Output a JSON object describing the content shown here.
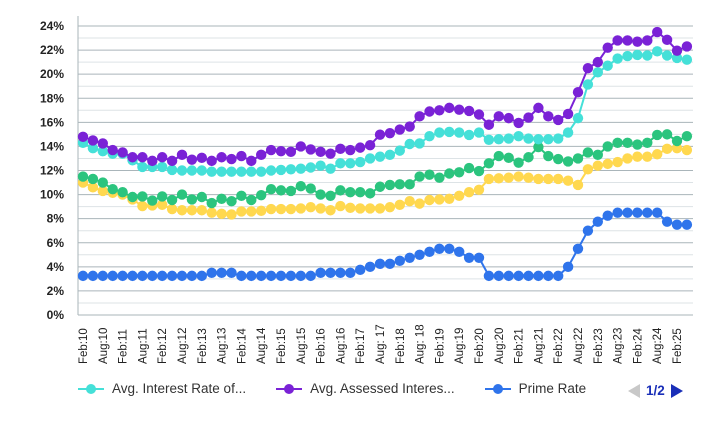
{
  "chart_data": {
    "type": "line",
    "title": "",
    "xlabel": "",
    "ylabel": "",
    "ylim": [
      0,
      24
    ],
    "yticks": [
      "0%",
      "2%",
      "4%",
      "6%",
      "8%",
      "10%",
      "12%",
      "14%",
      "16%",
      "18%",
      "20%",
      "22%",
      "24%"
    ],
    "grid": true,
    "legend_position": "bottom",
    "x_tick_labels": [
      "Feb:10",
      "Aug:10",
      "Feb:11",
      "Aug:11",
      "Feb:12",
      "Aug:12",
      "Feb:13",
      "Aug:13",
      "Feb:14",
      "Aug:14",
      "Feb:15",
      "Aug:15",
      "Feb:16",
      "Aug:16",
      "Feb:17",
      "Aug: 17",
      "Feb:18",
      "Aug: 18",
      "Feb:19",
      "Aug:19",
      "Feb:20",
      "Aug:20",
      "Feb:21",
      "Aug:21",
      "Feb:22",
      "Aug:22",
      "Feb:23",
      "Aug:23",
      "Feb:24",
      "Aug:24",
      "Feb:25"
    ],
    "series": [
      {
        "name": "Avg. Interest Rate of...",
        "color": "#45E0D8",
        "legend": true,
        "values": [
          14.3,
          13.85,
          13.6,
          13.4,
          13.4,
          12.85,
          12.3,
          12.3,
          12.3,
          12.05,
          12.0,
          12.0,
          12.0,
          11.9,
          11.9,
          11.9,
          11.9,
          11.9,
          11.9,
          12.0,
          12.05,
          12.1,
          12.15,
          12.25,
          12.4,
          12.15,
          12.6,
          12.6,
          12.7,
          13.0,
          13.15,
          13.3,
          13.65,
          14.2,
          14.25,
          14.85,
          15.15,
          15.2,
          15.15,
          14.95,
          15.15,
          14.55,
          14.6,
          14.65,
          14.85,
          14.65,
          14.6,
          14.6,
          14.65,
          15.15,
          16.35,
          19.15,
          20.15,
          20.7,
          21.3,
          21.5,
          21.6,
          21.55,
          21.9,
          21.55,
          21.35,
          21.2
        ]
      },
      {
        "name": "Avg. Assessed Interes...",
        "color": "#7A22D6",
        "legend": true,
        "values": [
          14.8,
          14.5,
          14.25,
          13.7,
          13.5,
          13.1,
          13.1,
          12.8,
          13.1,
          12.8,
          13.3,
          12.9,
          13.05,
          12.8,
          13.1,
          12.95,
          13.2,
          12.8,
          13.3,
          13.7,
          13.6,
          13.55,
          14.0,
          13.75,
          13.55,
          13.4,
          13.8,
          13.7,
          13.9,
          14.1,
          14.97,
          15.1,
          15.4,
          15.65,
          16.5,
          16.9,
          17.0,
          17.2,
          17.05,
          16.95,
          16.65,
          15.8,
          16.5,
          16.35,
          15.95,
          16.4,
          17.2,
          16.5,
          16.2,
          16.7,
          18.5,
          20.5,
          21.0,
          22.2,
          22.8,
          22.8,
          22.7,
          22.8,
          23.5,
          22.85,
          21.95,
          22.3
        ]
      },
      {
        "name": "Prime Rate",
        "color": "#2F74EB",
        "legend": true,
        "values": [
          3.25,
          3.25,
          3.25,
          3.25,
          3.25,
          3.25,
          3.25,
          3.25,
          3.25,
          3.25,
          3.25,
          3.25,
          3.25,
          3.5,
          3.5,
          3.5,
          3.25,
          3.25,
          3.25,
          3.25,
          3.25,
          3.25,
          3.25,
          3.25,
          3.5,
          3.5,
          3.5,
          3.5,
          3.75,
          4.0,
          4.25,
          4.25,
          4.5,
          4.75,
          5.0,
          5.25,
          5.5,
          5.5,
          5.25,
          4.75,
          4.75,
          3.25,
          3.25,
          3.25,
          3.25,
          3.25,
          3.25,
          3.25,
          3.25,
          4.0,
          5.5,
          7.0,
          7.75,
          8.25,
          8.5,
          8.5,
          8.5,
          8.5,
          8.5,
          7.75,
          7.5,
          7.5
        ]
      },
      {
        "color": "#2BC47E",
        "legend": false,
        "values": [
          11.5,
          11.3,
          11.0,
          10.45,
          10.2,
          9.8,
          9.85,
          9.5,
          9.85,
          9.55,
          10.0,
          9.6,
          9.8,
          9.3,
          9.65,
          9.45,
          9.9,
          9.55,
          9.95,
          10.45,
          10.35,
          10.3,
          10.7,
          10.5,
          10.0,
          9.9,
          10.35,
          10.2,
          10.2,
          10.1,
          10.65,
          10.8,
          10.85,
          10.85,
          11.5,
          11.65,
          11.4,
          11.75,
          11.85,
          12.2,
          11.95,
          12.6,
          13.2,
          13.05,
          12.65,
          13.1,
          13.95,
          13.2,
          12.95,
          12.75,
          13.0,
          13.5,
          13.3,
          14.0,
          14.3,
          14.3,
          14.15,
          14.3,
          14.95,
          15.0,
          14.45,
          14.85
        ]
      },
      {
        "color": "#FFD84F",
        "legend": false,
        "values": [
          11.0,
          10.6,
          10.3,
          10.15,
          10.0,
          9.6,
          9.05,
          9.1,
          9.15,
          8.8,
          8.7,
          8.7,
          8.7,
          8.5,
          8.4,
          8.35,
          8.6,
          8.6,
          8.65,
          8.8,
          8.8,
          8.8,
          8.85,
          8.95,
          8.85,
          8.7,
          9.05,
          8.9,
          8.85,
          8.85,
          8.85,
          8.95,
          9.15,
          9.45,
          9.25,
          9.55,
          9.6,
          9.65,
          9.9,
          10.2,
          10.4,
          11.3,
          11.35,
          11.4,
          11.5,
          11.4,
          11.3,
          11.3,
          11.3,
          11.15,
          10.8,
          12.1,
          12.4,
          12.55,
          12.7,
          13.0,
          13.15,
          13.15,
          13.35,
          13.8,
          13.85,
          13.7
        ]
      }
    ]
  },
  "legend": {
    "items": [
      {
        "label": "Avg. Interest Rate of...",
        "color": "#45E0D8"
      },
      {
        "label": "Avg. Assessed Interes...",
        "color": "#7A22D6"
      },
      {
        "label": "Prime Rate",
        "color": "#2F74EB"
      }
    ],
    "page": "1/2",
    "prev_icon": "triangle-left-icon",
    "next_icon": "triangle-right-icon",
    "inactive_color": "#C8C8C8",
    "active_color": "#1A2FB8"
  }
}
